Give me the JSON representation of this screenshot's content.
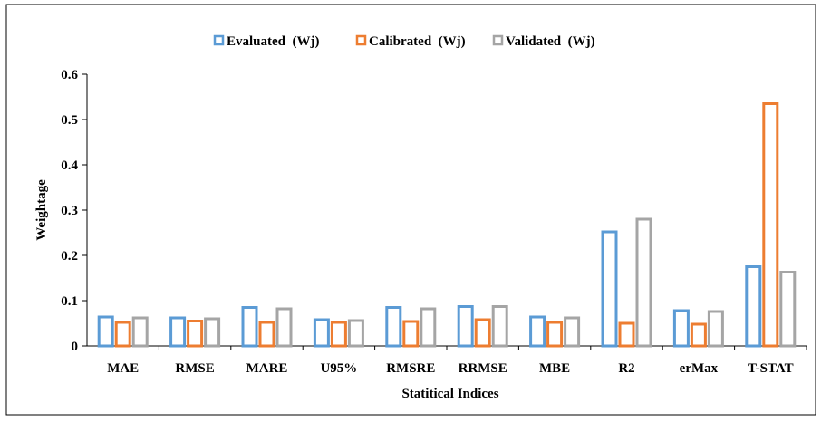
{
  "chart_data": {
    "type": "bar",
    "title": "",
    "xlabel": "Statitical Indices",
    "ylabel": "Weightage",
    "ylim": [
      0,
      0.6
    ],
    "yticks": [
      "0",
      "0.1",
      "0.2",
      "0.3",
      "0.4",
      "0.5",
      "0.6"
    ],
    "categories": [
      "MAE",
      "RMSE",
      "MARE",
      "U95%",
      "RMSRE",
      "RRMSE",
      "MBE",
      "R2",
      "erMax",
      "T-STAT"
    ],
    "series": [
      {
        "name": "Evaluated  (Wj)",
        "color": "#5b9bd5",
        "values": [
          0.064,
          0.062,
          0.085,
          0.058,
          0.085,
          0.087,
          0.064,
          0.252,
          0.078,
          0.175
        ]
      },
      {
        "name": "Calibrated  (Wj)",
        "color": "#ed7d31",
        "values": [
          0.052,
          0.055,
          0.052,
          0.052,
          0.054,
          0.058,
          0.052,
          0.05,
          0.048,
          0.535
        ]
      },
      {
        "name": "Validated  (Wj)",
        "color": "#a5a5a5",
        "values": [
          0.062,
          0.06,
          0.082,
          0.056,
          0.082,
          0.087,
          0.062,
          0.28,
          0.076,
          0.163
        ]
      }
    ],
    "legend_position": "top",
    "grid": false
  }
}
